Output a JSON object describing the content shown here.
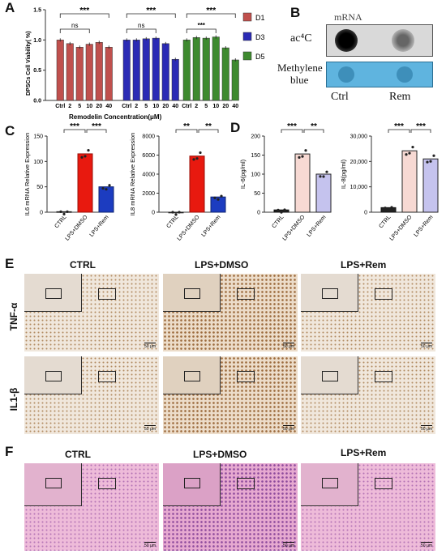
{
  "panels": {
    "A": "A",
    "B": "B",
    "C": "C",
    "D": "D",
    "E": "E",
    "F": "F"
  },
  "colors": {
    "d1": "#c0504d",
    "d3": "#2b2bb5",
    "d5": "#3e8a2f",
    "lps_dmso_red": "#e8190f",
    "lps_rem_blue": "#1c3cc0",
    "d_dmso_fill": "#f7d9d3",
    "d_rem_fill": "#c5c3ee",
    "ctrl": "#222222"
  },
  "chart_data": [
    {
      "panel": "A",
      "type": "bar",
      "ylabel": "DPSCs Cell Viability( %)",
      "xlabel": "Remodelin Concentration(μM)",
      "ylim": [
        0,
        1.5
      ],
      "yticks": [
        "0.0",
        "0.5",
        "1.0",
        "1.5"
      ],
      "categories": [
        "Ctrl",
        "2",
        "5",
        "10",
        "20",
        "40"
      ],
      "legend_position": "right",
      "series": [
        {
          "name": "D1",
          "values": [
            1.0,
            0.94,
            0.88,
            0.93,
            0.96,
            0.88
          ]
        },
        {
          "name": "D3",
          "values": [
            1.0,
            1.0,
            1.02,
            1.03,
            0.94,
            0.68
          ]
        },
        {
          "name": "D5",
          "values": [
            1.0,
            1.04,
            1.03,
            1.05,
            0.87,
            0.67
          ]
        }
      ],
      "annotations": [
        {
          "group": "D1",
          "brackets": [
            "***",
            "ns"
          ]
        },
        {
          "group": "D3",
          "brackets": [
            "***",
            "ns"
          ]
        },
        {
          "group": "D5",
          "brackets": [
            "***",
            "***"
          ]
        }
      ]
    },
    {
      "panel": "C",
      "type": "bar",
      "ylabel": "IL6 mRNA Relative Expression",
      "ylim": [
        0,
        150
      ],
      "yticks": [
        "0",
        "50",
        "100",
        "150"
      ],
      "categories": [
        "CTRL",
        "LPS+DMSO",
        "LPS+Rem"
      ],
      "values": [
        1,
        115,
        50
      ],
      "annotations": [
        "***",
        "***"
      ]
    },
    {
      "panel": "C",
      "type": "bar",
      "ylabel": "IL8 mRNA Relative Expression",
      "ylim": [
        0,
        8000
      ],
      "yticks": [
        "0",
        "2000",
        "4000",
        "6000",
        "8000"
      ],
      "categories": [
        "CTRL",
        "LPS+DMSO",
        "LPS+Rem"
      ],
      "values": [
        1,
        5900,
        1600
      ],
      "annotations": [
        "**",
        "**"
      ]
    },
    {
      "panel": "D",
      "type": "bar",
      "ylabel": "IL-6(pg/ml)",
      "ylim": [
        0,
        200
      ],
      "yticks": [
        "0",
        "50",
        "100",
        "150",
        "200"
      ],
      "categories": [
        "CTRL",
        "LPS+DMSO",
        "LPS+Rem"
      ],
      "values": [
        6,
        153,
        100
      ],
      "annotations": [
        "***",
        "**"
      ]
    },
    {
      "panel": "D",
      "type": "bar",
      "ylabel": "IL-8(pg/ml)",
      "ylim": [
        0,
        30000
      ],
      "yticks": [
        "0",
        "10,000",
        "20,000",
        "30,000"
      ],
      "categories": [
        "CTRL",
        "LPS+DMSO",
        "LPS+Rem"
      ],
      "values": [
        1800,
        24200,
        21000
      ],
      "annotations": [
        "***",
        "***"
      ]
    }
  ],
  "blot": {
    "title": "mRNA",
    "row1_label": "ac⁴C",
    "row2_label_line1": "Methylene",
    "row2_label_line2": "blue",
    "col1": "Ctrl",
    "col2": "Rem"
  },
  "histology": {
    "col_labels": [
      "CTRL",
      "LPS+DMSO",
      "LPS+Rem"
    ],
    "row_labels_E": [
      "TNF-α",
      "IL1-β"
    ],
    "scale": "50 μm"
  }
}
